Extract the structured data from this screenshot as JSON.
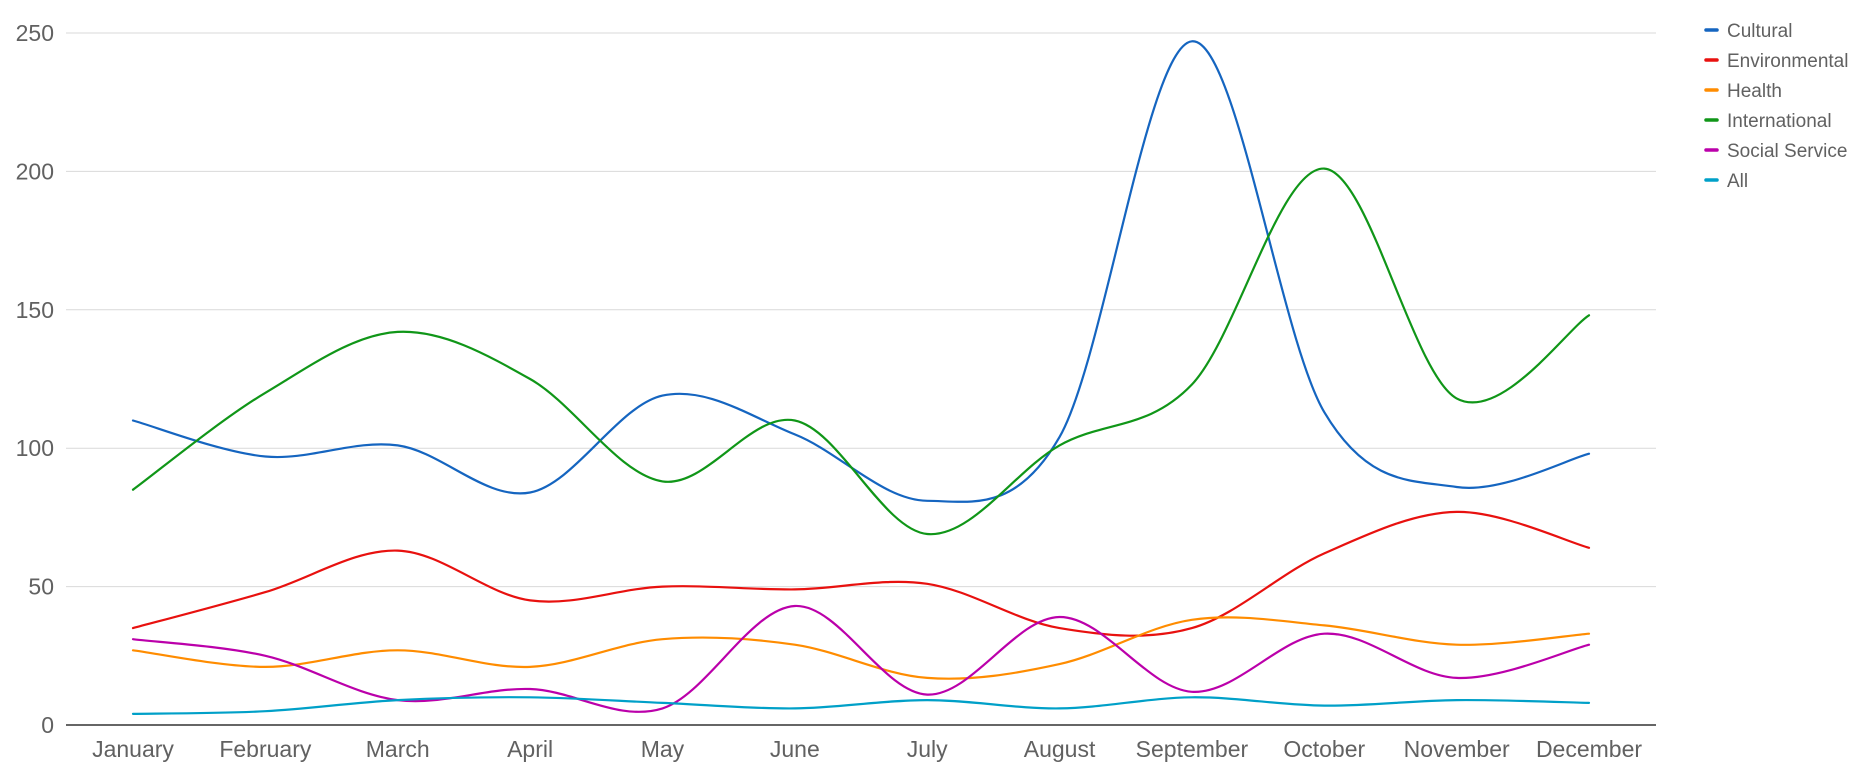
{
  "chart_data": {
    "type": "line",
    "title": "",
    "xlabel": "",
    "ylabel": "",
    "ylim": [
      0,
      250
    ],
    "yticks": [
      0,
      50,
      100,
      150,
      200,
      250
    ],
    "grid": true,
    "legend_position": "top-right",
    "categories": [
      "January",
      "February",
      "March",
      "April",
      "May",
      "June",
      "July",
      "August",
      "September",
      "October",
      "November",
      "December"
    ],
    "series": [
      {
        "name": "Cultural",
        "color": "#1565c0",
        "values": [
          110,
          97,
          101,
          84,
          119,
          105,
          81,
          104,
          247,
          113,
          86,
          98
        ]
      },
      {
        "name": "Environmental",
        "color": "#e8110f",
        "values": [
          35,
          48,
          63,
          45,
          50,
          49,
          51,
          35,
          35,
          62,
          77,
          64
        ]
      },
      {
        "name": "Health",
        "color": "#ff8c00",
        "values": [
          27,
          21,
          27,
          21,
          31,
          29,
          17,
          22,
          38,
          36,
          29,
          33
        ]
      },
      {
        "name": "International",
        "color": "#109618",
        "values": [
          85,
          120,
          142,
          125,
          88,
          110,
          69,
          101,
          123,
          201,
          118,
          148
        ]
      },
      {
        "name": "Social Service",
        "color": "#bb00aa",
        "values": [
          31,
          25,
          9,
          13,
          6,
          43,
          11,
          39,
          12,
          33,
          17,
          29
        ]
      },
      {
        "name": "All",
        "color": "#00a0c8",
        "values": [
          4,
          5,
          9,
          10,
          8,
          6,
          9,
          6,
          10,
          7,
          9,
          8
        ]
      }
    ]
  }
}
